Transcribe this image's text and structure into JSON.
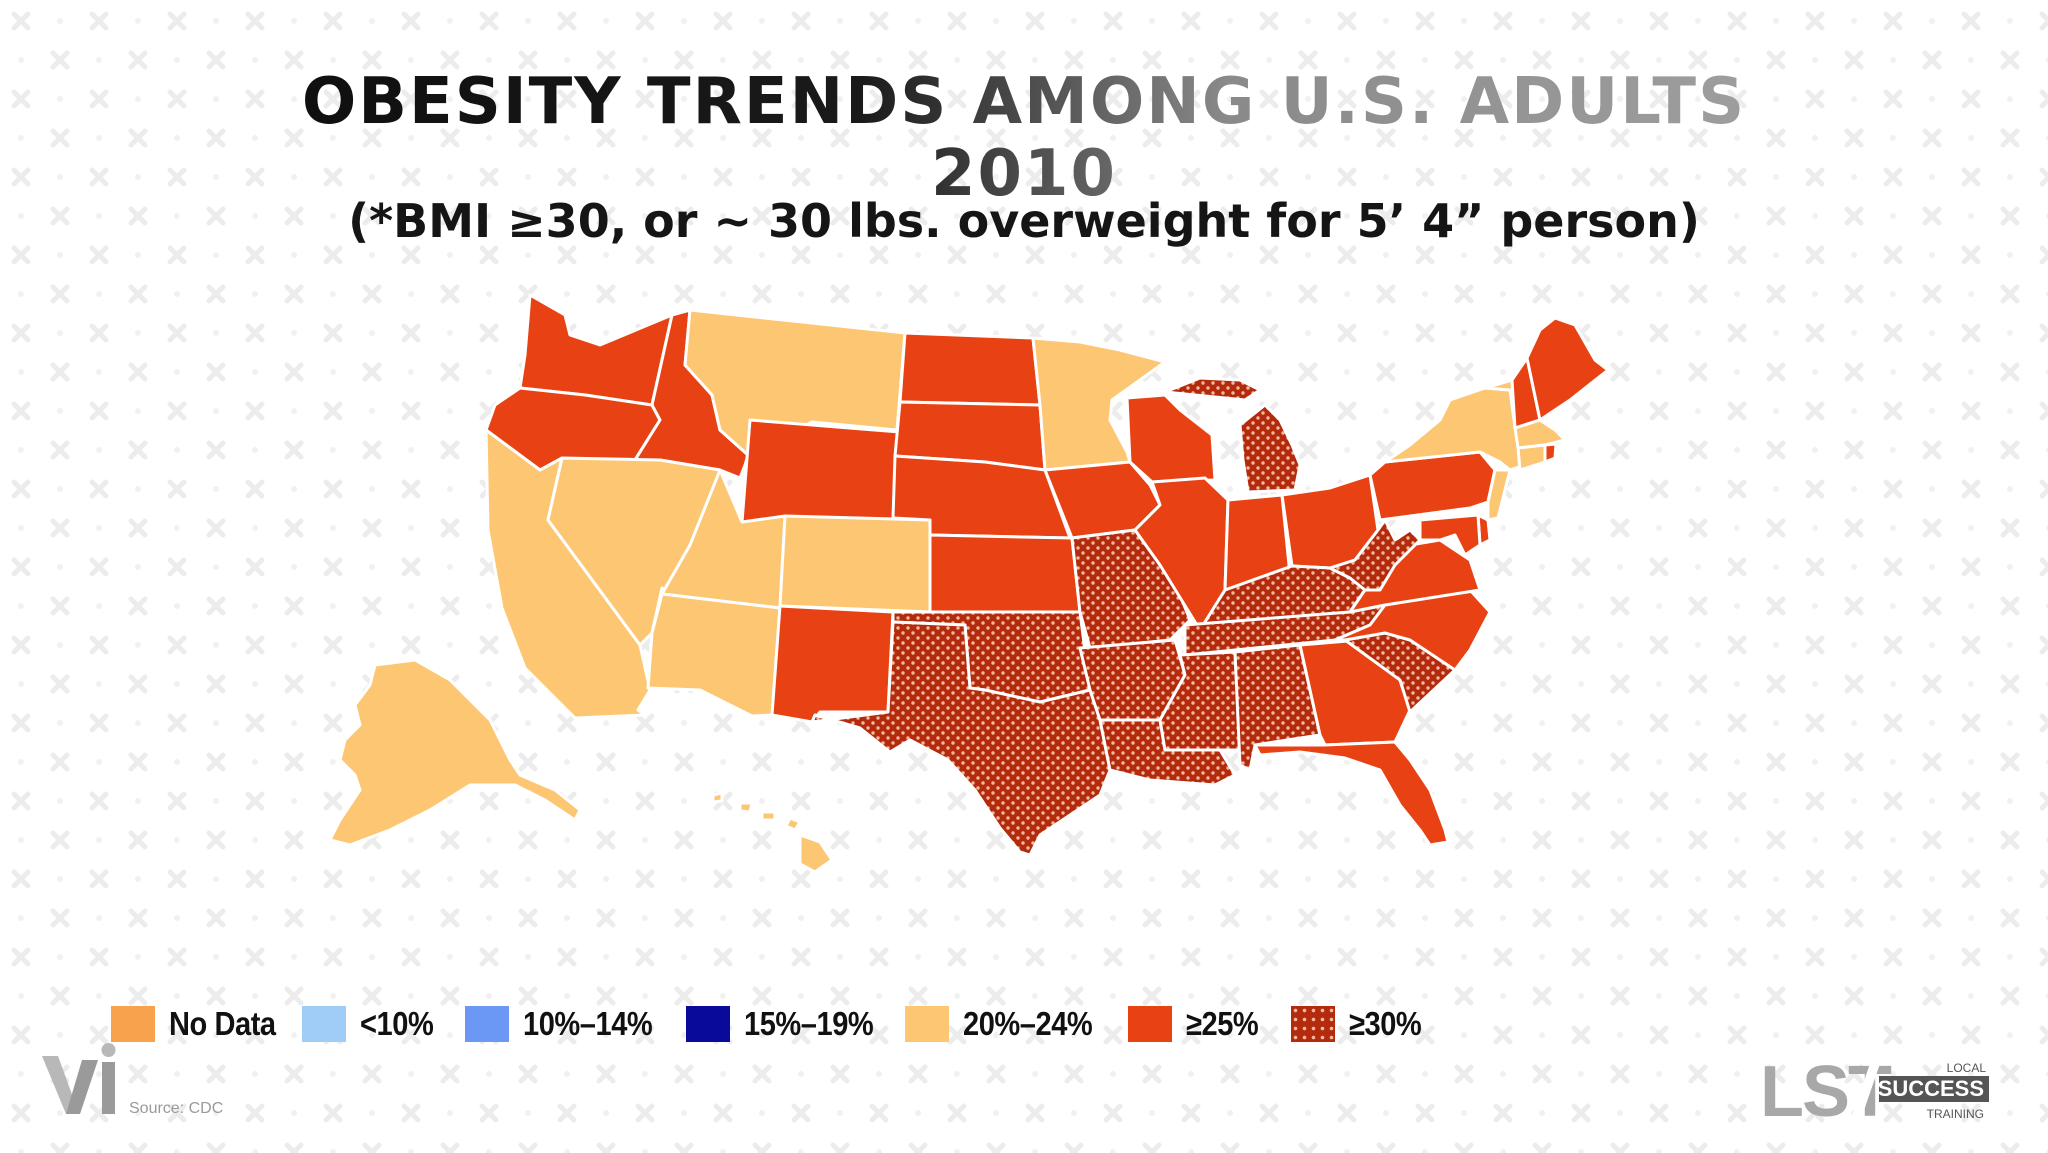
{
  "title": {
    "line1": "OBESITY TRENDS AMONG U.S. ADULTS",
    "line2": "2010",
    "subtitle": "(*BMI ≥30, or ~ 30 lbs. overweight for 5’ 4” person)"
  },
  "colors": {
    "no_data": "#f7a24d",
    "lt10": "#9fcdf7",
    "c10_14": "#6a98f4",
    "c15_19": "#0a0a9a",
    "c20_24": "#fdc673",
    "c25": "#e84214",
    "c30": "#b32a0d",
    "c30_dot": "#f2b9a0"
  },
  "legend": [
    {
      "key": "no_data",
      "label": "No Data"
    },
    {
      "key": "lt10",
      "label": "<10%"
    },
    {
      "key": "c10_14",
      "label": "10%–14%"
    },
    {
      "key": "c15_19",
      "label": "15%–19%"
    },
    {
      "key": "c20_24",
      "label": "20%–24%"
    },
    {
      "key": "c25",
      "label": "≥25%"
    },
    {
      "key": "c30",
      "label": "≥30%"
    }
  ],
  "map": {
    "states": [
      {
        "name": "WA",
        "cls": "c25"
      },
      {
        "name": "OR",
        "cls": "c25"
      },
      {
        "name": "CA",
        "cls": "c20_24"
      },
      {
        "name": "ID",
        "cls": "c25"
      },
      {
        "name": "NV",
        "cls": "c20_24"
      },
      {
        "name": "MT",
        "cls": "c20_24"
      },
      {
        "name": "WY",
        "cls": "c25"
      },
      {
        "name": "UT",
        "cls": "c20_24"
      },
      {
        "name": "AZ",
        "cls": "c20_24"
      },
      {
        "name": "CO",
        "cls": "c20_24"
      },
      {
        "name": "NM",
        "cls": "c25"
      },
      {
        "name": "ND",
        "cls": "c25"
      },
      {
        "name": "SD",
        "cls": "c25"
      },
      {
        "name": "NE",
        "cls": "c25"
      },
      {
        "name": "KS",
        "cls": "c25"
      },
      {
        "name": "OK",
        "cls": "c30"
      },
      {
        "name": "TX",
        "cls": "c30"
      },
      {
        "name": "MN",
        "cls": "c20_24"
      },
      {
        "name": "IA",
        "cls": "c25"
      },
      {
        "name": "MO",
        "cls": "c30"
      },
      {
        "name": "AR",
        "cls": "c30"
      },
      {
        "name": "LA",
        "cls": "c30"
      },
      {
        "name": "WI",
        "cls": "c25"
      },
      {
        "name": "IL",
        "cls": "c25"
      },
      {
        "name": "MI",
        "cls": "c30"
      },
      {
        "name": "IN",
        "cls": "c25"
      },
      {
        "name": "OH",
        "cls": "c25"
      },
      {
        "name": "KY",
        "cls": "c30"
      },
      {
        "name": "TN",
        "cls": "c30"
      },
      {
        "name": "MS",
        "cls": "c30"
      },
      {
        "name": "AL",
        "cls": "c30"
      },
      {
        "name": "GA",
        "cls": "c25"
      },
      {
        "name": "FL",
        "cls": "c25"
      },
      {
        "name": "SC",
        "cls": "c30"
      },
      {
        "name": "NC",
        "cls": "c25"
      },
      {
        "name": "VA",
        "cls": "c25"
      },
      {
        "name": "WV",
        "cls": "c30"
      },
      {
        "name": "PA",
        "cls": "c25"
      },
      {
        "name": "NY",
        "cls": "c20_24"
      },
      {
        "name": "VT",
        "cls": "c20_24"
      },
      {
        "name": "NH",
        "cls": "c25"
      },
      {
        "name": "ME",
        "cls": "c25"
      },
      {
        "name": "MA",
        "cls": "c20_24"
      },
      {
        "name": "CT",
        "cls": "c20_24"
      },
      {
        "name": "RI",
        "cls": "c25"
      },
      {
        "name": "NJ",
        "cls": "c20_24"
      },
      {
        "name": "DE",
        "cls": "c25"
      },
      {
        "name": "MD",
        "cls": "c25"
      },
      {
        "name": "AK",
        "cls": "c20_24"
      },
      {
        "name": "HI",
        "cls": "c20_24"
      }
    ]
  },
  "footer": {
    "source": "Source: CDC",
    "logo_left": "Vi",
    "logo_right_main": "LST",
    "logo_right_top": "LOCAL",
    "logo_right_mid": "SUCCESS",
    "logo_right_bottom": "TRAINING"
  }
}
